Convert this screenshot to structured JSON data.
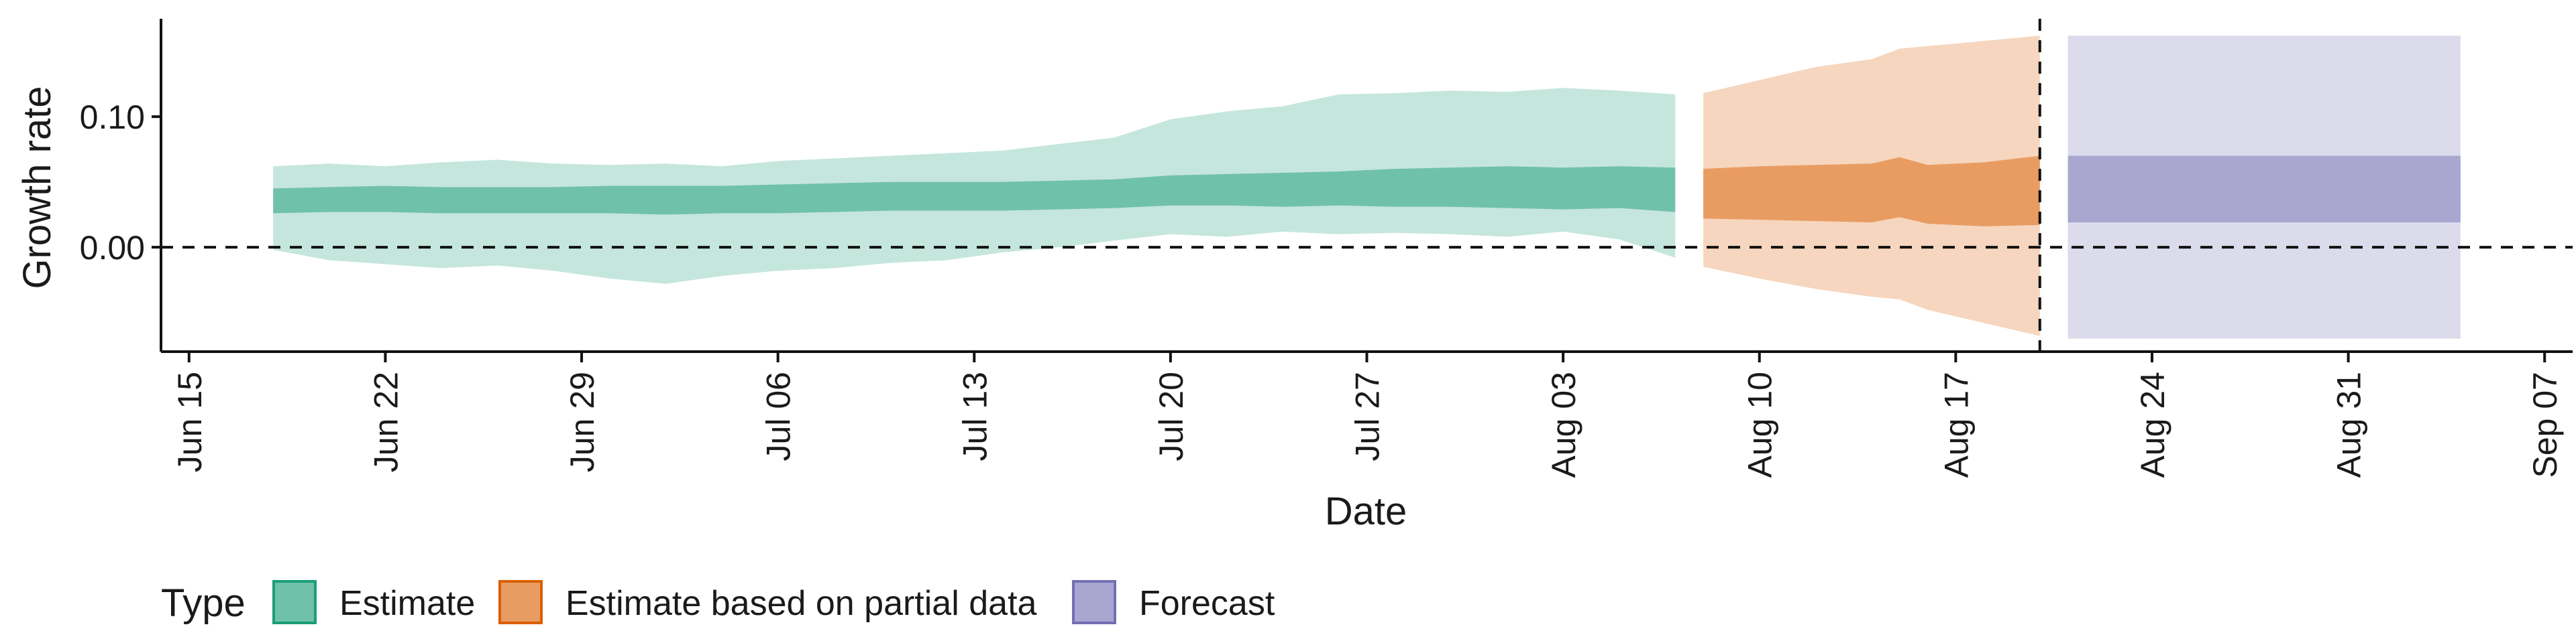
{
  "chart_data": {
    "type": "area",
    "xlabel": "Date",
    "ylabel": "Growth rate",
    "x_ticks": [
      "Jun 15",
      "Jun 22",
      "Jun 29",
      "Jul 06",
      "Jul 13",
      "Jul 20",
      "Jul 27",
      "Aug 03",
      "Aug 10",
      "Aug 17",
      "Aug 24",
      "Aug 31",
      "Sep 07"
    ],
    "y_ticks": [
      "0.00",
      "0.10"
    ],
    "xlim": [
      "2020-06-14",
      "2020-09-08"
    ],
    "ylim": [
      -0.08,
      0.175
    ],
    "reference_lines": {
      "y_zero": 0.0,
      "forecast_start": "2020-08-20"
    },
    "legend": {
      "title": "Type",
      "position": "bottom-left",
      "entries": [
        "Estimate",
        "Estimate based on partial data",
        "Forecast"
      ]
    },
    "colors": {
      "Estimate": {
        "inner": "#70c1a9",
        "outer": "#c5e6dc",
        "border": "#1b9e77"
      },
      "Estimate based on partial data": {
        "inner": "#e99c62",
        "outer": "#f6d6be",
        "border": "#d95f02"
      },
      "Forecast": {
        "inner": "#a9a6d0",
        "outer": "#dcdbec",
        "border": "#7570b3"
      }
    },
    "series": [
      {
        "name": "Estimate",
        "x": [
          "2020-06-18",
          "2020-06-20",
          "2020-06-22",
          "2020-06-24",
          "2020-06-26",
          "2020-06-28",
          "2020-06-30",
          "2020-07-02",
          "2020-07-04",
          "2020-07-06",
          "2020-07-08",
          "2020-07-10",
          "2020-07-12",
          "2020-07-14",
          "2020-07-16",
          "2020-07-18",
          "2020-07-20",
          "2020-07-22",
          "2020-07-24",
          "2020-07-26",
          "2020-07-28",
          "2020-07-30",
          "2020-08-01",
          "2020-08-03",
          "2020-08-05",
          "2020-08-07"
        ],
        "median_lo": [
          0.026,
          0.027,
          0.027,
          0.026,
          0.026,
          0.026,
          0.026,
          0.025,
          0.026,
          0.026,
          0.027,
          0.028,
          0.028,
          0.028,
          0.029,
          0.03,
          0.032,
          0.032,
          0.031,
          0.032,
          0.031,
          0.031,
          0.03,
          0.029,
          0.03,
          0.027
        ],
        "median_hi": [
          0.045,
          0.046,
          0.047,
          0.046,
          0.046,
          0.046,
          0.047,
          0.047,
          0.047,
          0.048,
          0.049,
          0.05,
          0.05,
          0.05,
          0.051,
          0.052,
          0.055,
          0.056,
          0.057,
          0.058,
          0.06,
          0.061,
          0.062,
          0.061,
          0.062,
          0.061
        ],
        "ci_lo": [
          -0.002,
          -0.01,
          -0.013,
          -0.016,
          -0.014,
          -0.018,
          -0.024,
          -0.028,
          -0.022,
          -0.018,
          -0.016,
          -0.012,
          -0.01,
          -0.004,
          0.0,
          0.005,
          0.01,
          0.008,
          0.012,
          0.01,
          0.011,
          0.01,
          0.008,
          0.012,
          0.006,
          -0.008
        ],
        "ci_hi": [
          0.062,
          0.064,
          0.062,
          0.065,
          0.067,
          0.064,
          0.063,
          0.064,
          0.062,
          0.066,
          0.068,
          0.07,
          0.072,
          0.074,
          0.079,
          0.084,
          0.098,
          0.104,
          0.108,
          0.117,
          0.118,
          0.12,
          0.119,
          0.122,
          0.12,
          0.117
        ]
      },
      {
        "name": "Estimate based on partial data",
        "x": [
          "2020-08-08",
          "2020-08-10",
          "2020-08-12",
          "2020-08-14",
          "2020-08-15",
          "2020-08-16",
          "2020-08-18",
          "2020-08-20"
        ],
        "median_lo": [
          0.022,
          0.021,
          0.02,
          0.019,
          0.023,
          0.018,
          0.016,
          0.017
        ],
        "median_hi": [
          0.06,
          0.062,
          0.063,
          0.064,
          0.069,
          0.063,
          0.065,
          0.07
        ],
        "ci_lo": [
          -0.015,
          -0.024,
          -0.032,
          -0.038,
          -0.04,
          -0.048,
          -0.058,
          -0.068
        ],
        "ci_hi": [
          0.118,
          0.128,
          0.138,
          0.144,
          0.152,
          0.154,
          0.158,
          0.162
        ]
      },
      {
        "name": "Forecast",
        "x": [
          "2020-08-21",
          "2020-09-04"
        ],
        "median_lo": [
          0.019,
          0.019
        ],
        "median_hi": [
          0.07,
          0.07
        ],
        "ci_lo": [
          -0.07,
          -0.07
        ],
        "ci_hi": [
          0.162,
          0.162
        ]
      }
    ]
  }
}
